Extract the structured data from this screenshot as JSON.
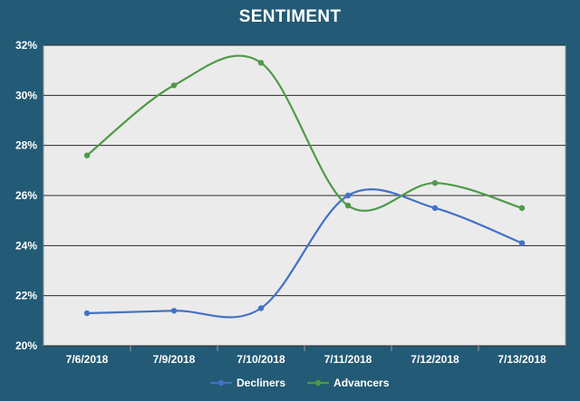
{
  "chart_data": {
    "type": "line",
    "title": "SENTIMENT",
    "categories": [
      "7/6/2018",
      "7/9/2018",
      "7/10/2018",
      "7/11/2018",
      "7/12/2018",
      "7/13/2018"
    ],
    "series": [
      {
        "name": "Decliners",
        "color": "#4472c4",
        "values": [
          21.3,
          21.4,
          21.5,
          26.0,
          25.5,
          24.1
        ]
      },
      {
        "name": "Advancers",
        "color": "#4e9a48",
        "values": [
          27.6,
          30.4,
          31.3,
          25.6,
          26.5,
          25.5
        ]
      }
    ],
    "ylim": [
      20,
      32
    ],
    "yticks": [
      "20%",
      "22%",
      "24%",
      "26%",
      "28%",
      "30%",
      "32%"
    ],
    "grid": true,
    "legend": "bottom",
    "plot_background": "#ebebeb",
    "frame_color": "#235a75"
  }
}
